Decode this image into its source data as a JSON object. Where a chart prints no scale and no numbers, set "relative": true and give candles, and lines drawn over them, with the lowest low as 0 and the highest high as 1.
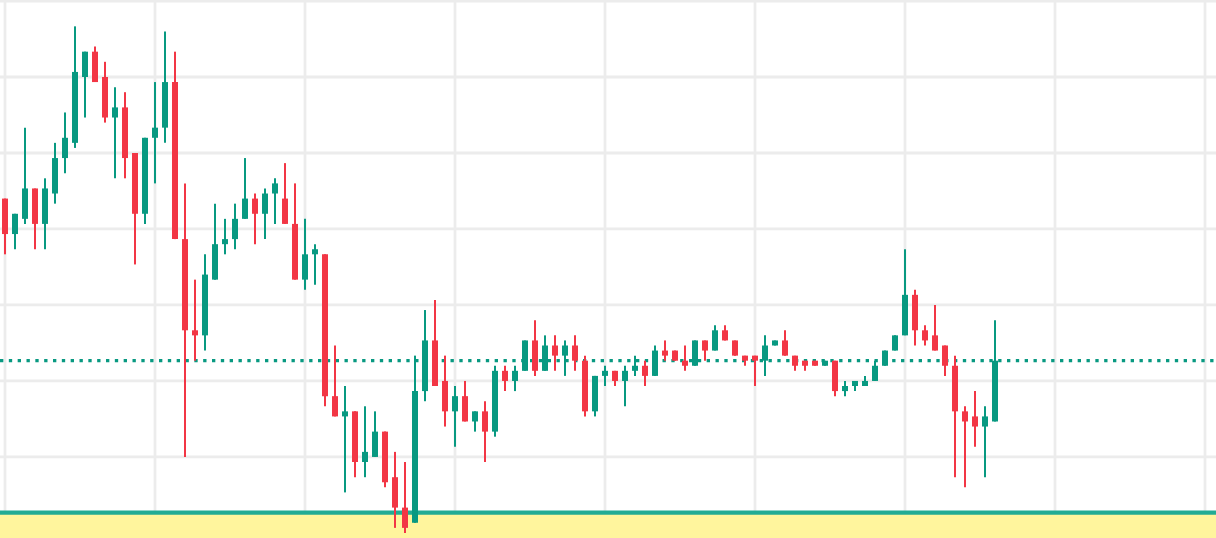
{
  "chart_data": {
    "type": "candlestick",
    "relative": true,
    "grid": true,
    "categories": [
      null,
      null,
      null,
      null,
      null,
      null,
      null,
      null,
      null,
      null,
      null,
      null,
      null,
      null,
      null,
      null,
      null,
      null,
      null,
      null,
      null,
      null,
      null,
      null,
      null,
      null,
      null,
      null,
      null,
      null,
      null,
      null,
      null,
      null,
      null,
      null,
      null,
      null,
      null,
      null,
      null,
      null,
      null,
      null,
      null,
      null,
      null,
      null,
      null,
      null,
      null,
      null,
      null,
      null,
      null,
      null,
      null,
      null,
      null,
      null,
      null,
      null,
      null,
      null,
      null,
      null,
      null,
      null,
      null,
      null,
      null,
      null,
      null,
      null,
      null,
      null,
      null,
      null,
      null,
      null,
      null,
      null,
      null,
      null,
      null,
      null,
      null,
      null,
      null,
      null,
      null,
      null,
      null,
      null,
      null,
      null,
      null,
      null,
      null,
      null
    ],
    "ohlc": [
      [
        0.66,
        0.66,
        0.55,
        0.59
      ],
      [
        0.59,
        0.63,
        0.56,
        0.63
      ],
      [
        0.62,
        0.8,
        0.61,
        0.68
      ],
      [
        0.68,
        0.68,
        0.56,
        0.61
      ],
      [
        0.61,
        0.7,
        0.56,
        0.68
      ],
      [
        0.67,
        0.77,
        0.65,
        0.74
      ],
      [
        0.74,
        0.83,
        0.71,
        0.78
      ],
      [
        0.77,
        1.0,
        0.76,
        0.91
      ],
      [
        0.9,
        0.95,
        0.82,
        0.95
      ],
      [
        0.95,
        0.96,
        0.89,
        0.89
      ],
      [
        0.9,
        0.93,
        0.81,
        0.82
      ],
      [
        0.82,
        0.88,
        0.7,
        0.84
      ],
      [
        0.84,
        0.87,
        0.7,
        0.74
      ],
      [
        0.75,
        0.75,
        0.53,
        0.63
      ],
      [
        0.63,
        0.78,
        0.61,
        0.78
      ],
      [
        0.78,
        0.89,
        0.69,
        0.8
      ],
      [
        0.8,
        0.99,
        0.77,
        0.89
      ],
      [
        0.89,
        0.95,
        0.58,
        0.58
      ],
      [
        0.58,
        0.69,
        0.15,
        0.4
      ],
      [
        0.4,
        0.5,
        0.34,
        0.39
      ],
      [
        0.39,
        0.55,
        0.36,
        0.51
      ],
      [
        0.5,
        0.65,
        0.5,
        0.57
      ],
      [
        0.57,
        0.62,
        0.55,
        0.58
      ],
      [
        0.58,
        0.65,
        0.56,
        0.62
      ],
      [
        0.62,
        0.74,
        0.62,
        0.66
      ],
      [
        0.66,
        0.67,
        0.57,
        0.63
      ],
      [
        0.63,
        0.68,
        0.58,
        0.67
      ],
      [
        0.67,
        0.7,
        0.61,
        0.69
      ],
      [
        0.66,
        0.73,
        0.61,
        0.61
      ],
      [
        0.61,
        0.69,
        0.5,
        0.5
      ],
      [
        0.5,
        0.62,
        0.48,
        0.55
      ],
      [
        0.55,
        0.57,
        0.49,
        0.56
      ],
      [
        0.55,
        0.55,
        0.25,
        0.27
      ],
      [
        0.27,
        0.37,
        0.23,
        0.23
      ],
      [
        0.23,
        0.29,
        0.08,
        0.24
      ],
      [
        0.24,
        0.24,
        0.11,
        0.14
      ],
      [
        0.14,
        0.25,
        0.11,
        0.16
      ],
      [
        0.15,
        0.24,
        0.15,
        0.2
      ],
      [
        0.2,
        0.2,
        0.09,
        0.1
      ],
      [
        0.11,
        0.16,
        0.01,
        0.05
      ],
      [
        0.05,
        0.14,
        0.0,
        0.01
      ],
      [
        0.02,
        0.35,
        0.02,
        0.28
      ],
      [
        0.28,
        0.44,
        0.26,
        0.38
      ],
      [
        0.38,
        0.46,
        0.29,
        0.29
      ],
      [
        0.3,
        0.35,
        0.21,
        0.24
      ],
      [
        0.24,
        0.29,
        0.17,
        0.27
      ],
      [
        0.27,
        0.3,
        0.22,
        0.22
      ],
      [
        0.22,
        0.24,
        0.2,
        0.24
      ],
      [
        0.24,
        0.26,
        0.14,
        0.2
      ],
      [
        0.2,
        0.33,
        0.19,
        0.32
      ],
      [
        0.32,
        0.33,
        0.28,
        0.3
      ],
      [
        0.3,
        0.33,
        0.28,
        0.32
      ],
      [
        0.32,
        0.38,
        0.32,
        0.38
      ],
      [
        0.38,
        0.42,
        0.31,
        0.32
      ],
      [
        0.32,
        0.39,
        0.32,
        0.37
      ],
      [
        0.37,
        0.39,
        0.32,
        0.35
      ],
      [
        0.35,
        0.38,
        0.31,
        0.37
      ],
      [
        0.37,
        0.39,
        0.32,
        0.34
      ],
      [
        0.34,
        0.35,
        0.23,
        0.24
      ],
      [
        0.24,
        0.31,
        0.23,
        0.31
      ],
      [
        0.31,
        0.33,
        0.29,
        0.32
      ],
      [
        0.32,
        0.32,
        0.29,
        0.3
      ],
      [
        0.3,
        0.33,
        0.25,
        0.32
      ],
      [
        0.32,
        0.35,
        0.31,
        0.33
      ],
      [
        0.33,
        0.34,
        0.29,
        0.31
      ],
      [
        0.31,
        0.37,
        0.31,
        0.36
      ],
      [
        0.36,
        0.38,
        0.34,
        0.35
      ],
      [
        0.36,
        0.36,
        0.34,
        0.34
      ],
      [
        0.34,
        0.37,
        0.32,
        0.33
      ],
      [
        0.33,
        0.38,
        0.33,
        0.38
      ],
      [
        0.38,
        0.38,
        0.34,
        0.36
      ],
      [
        0.36,
        0.41,
        0.36,
        0.4
      ],
      [
        0.4,
        0.41,
        0.38,
        0.38
      ],
      [
        0.38,
        0.38,
        0.35,
        0.35
      ],
      [
        0.35,
        0.35,
        0.33,
        0.34
      ],
      [
        0.35,
        0.35,
        0.29,
        0.34
      ],
      [
        0.34,
        0.39,
        0.31,
        0.37
      ],
      [
        0.37,
        0.38,
        0.37,
        0.38
      ],
      [
        0.38,
        0.4,
        0.35,
        0.35
      ],
      [
        0.35,
        0.35,
        0.32,
        0.33
      ],
      [
        0.34,
        0.34,
        0.32,
        0.33
      ],
      [
        0.34,
        0.34,
        0.33,
        0.33
      ],
      [
        0.33,
        0.34,
        0.33,
        0.34
      ],
      [
        0.34,
        0.34,
        0.27,
        0.28
      ],
      [
        0.28,
        0.3,
        0.27,
        0.29
      ],
      [
        0.29,
        0.3,
        0.28,
        0.3
      ],
      [
        0.29,
        0.31,
        0.29,
        0.3
      ],
      [
        0.3,
        0.34,
        0.3,
        0.33
      ],
      [
        0.33,
        0.36,
        0.33,
        0.36
      ],
      [
        0.36,
        0.39,
        0.36,
        0.39
      ],
      [
        0.39,
        0.56,
        0.39,
        0.47
      ],
      [
        0.47,
        0.48,
        0.37,
        0.4
      ],
      [
        0.4,
        0.41,
        0.37,
        0.38
      ],
      [
        0.39,
        0.45,
        0.36,
        0.36
      ],
      [
        0.37,
        0.37,
        0.31,
        0.33
      ],
      [
        0.33,
        0.35,
        0.11,
        0.24
      ],
      [
        0.24,
        0.25,
        0.09,
        0.22
      ],
      [
        0.23,
        0.28,
        0.17,
        0.21
      ],
      [
        0.21,
        0.25,
        0.11,
        0.23
      ],
      [
        0.22,
        0.42,
        0.22,
        0.34
      ]
    ],
    "ref_lines": [
      {
        "axis": "y",
        "value": 0.34,
        "label": null,
        "color": "#089981",
        "line_style": "dotted"
      },
      {
        "axis": "y",
        "value": 0.04,
        "label": null,
        "color": "#22ab94",
        "line_style": "solid"
      }
    ],
    "bands": [
      {
        "axis": "y",
        "from": -0.01,
        "to": 0.04,
        "label": null,
        "color": "#fff59d"
      }
    ]
  }
}
